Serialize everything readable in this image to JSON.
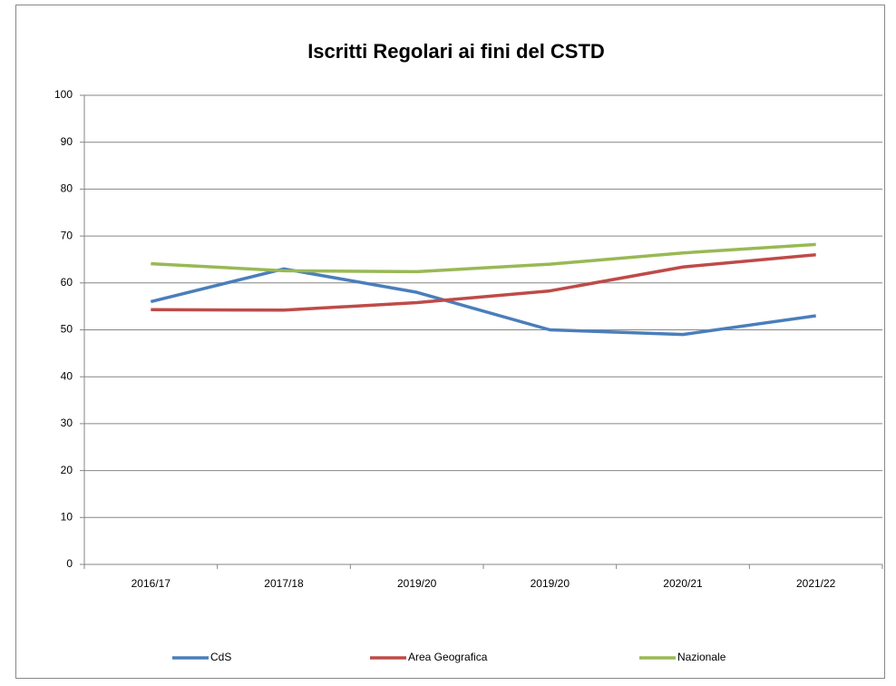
{
  "chart_data": {
    "type": "line",
    "title": "Iscritti Regolari ai fini del CSTD",
    "categories": [
      "2016/17",
      "2017/18",
      "2019/20",
      "2019/20",
      "2020/21",
      "2021/22"
    ],
    "series": [
      {
        "name": "CdS",
        "color": "#4a7ebb",
        "values": [
          56,
          63,
          58,
          50,
          49,
          53
        ]
      },
      {
        "name": "Area Geografica",
        "color": "#be4b48",
        "values": [
          54.3,
          54.2,
          55.8,
          58.3,
          63.4,
          66
        ]
      },
      {
        "name": "Nazionale",
        "color": "#98b954",
        "values": [
          64.1,
          62.6,
          62.4,
          64,
          66.4,
          68.2
        ]
      }
    ],
    "ylim": [
      0,
      100
    ],
    "yticks": [
      0,
      10,
      20,
      30,
      40,
      50,
      60,
      70,
      80,
      90,
      100
    ],
    "grid": true,
    "legend": "bottom"
  }
}
